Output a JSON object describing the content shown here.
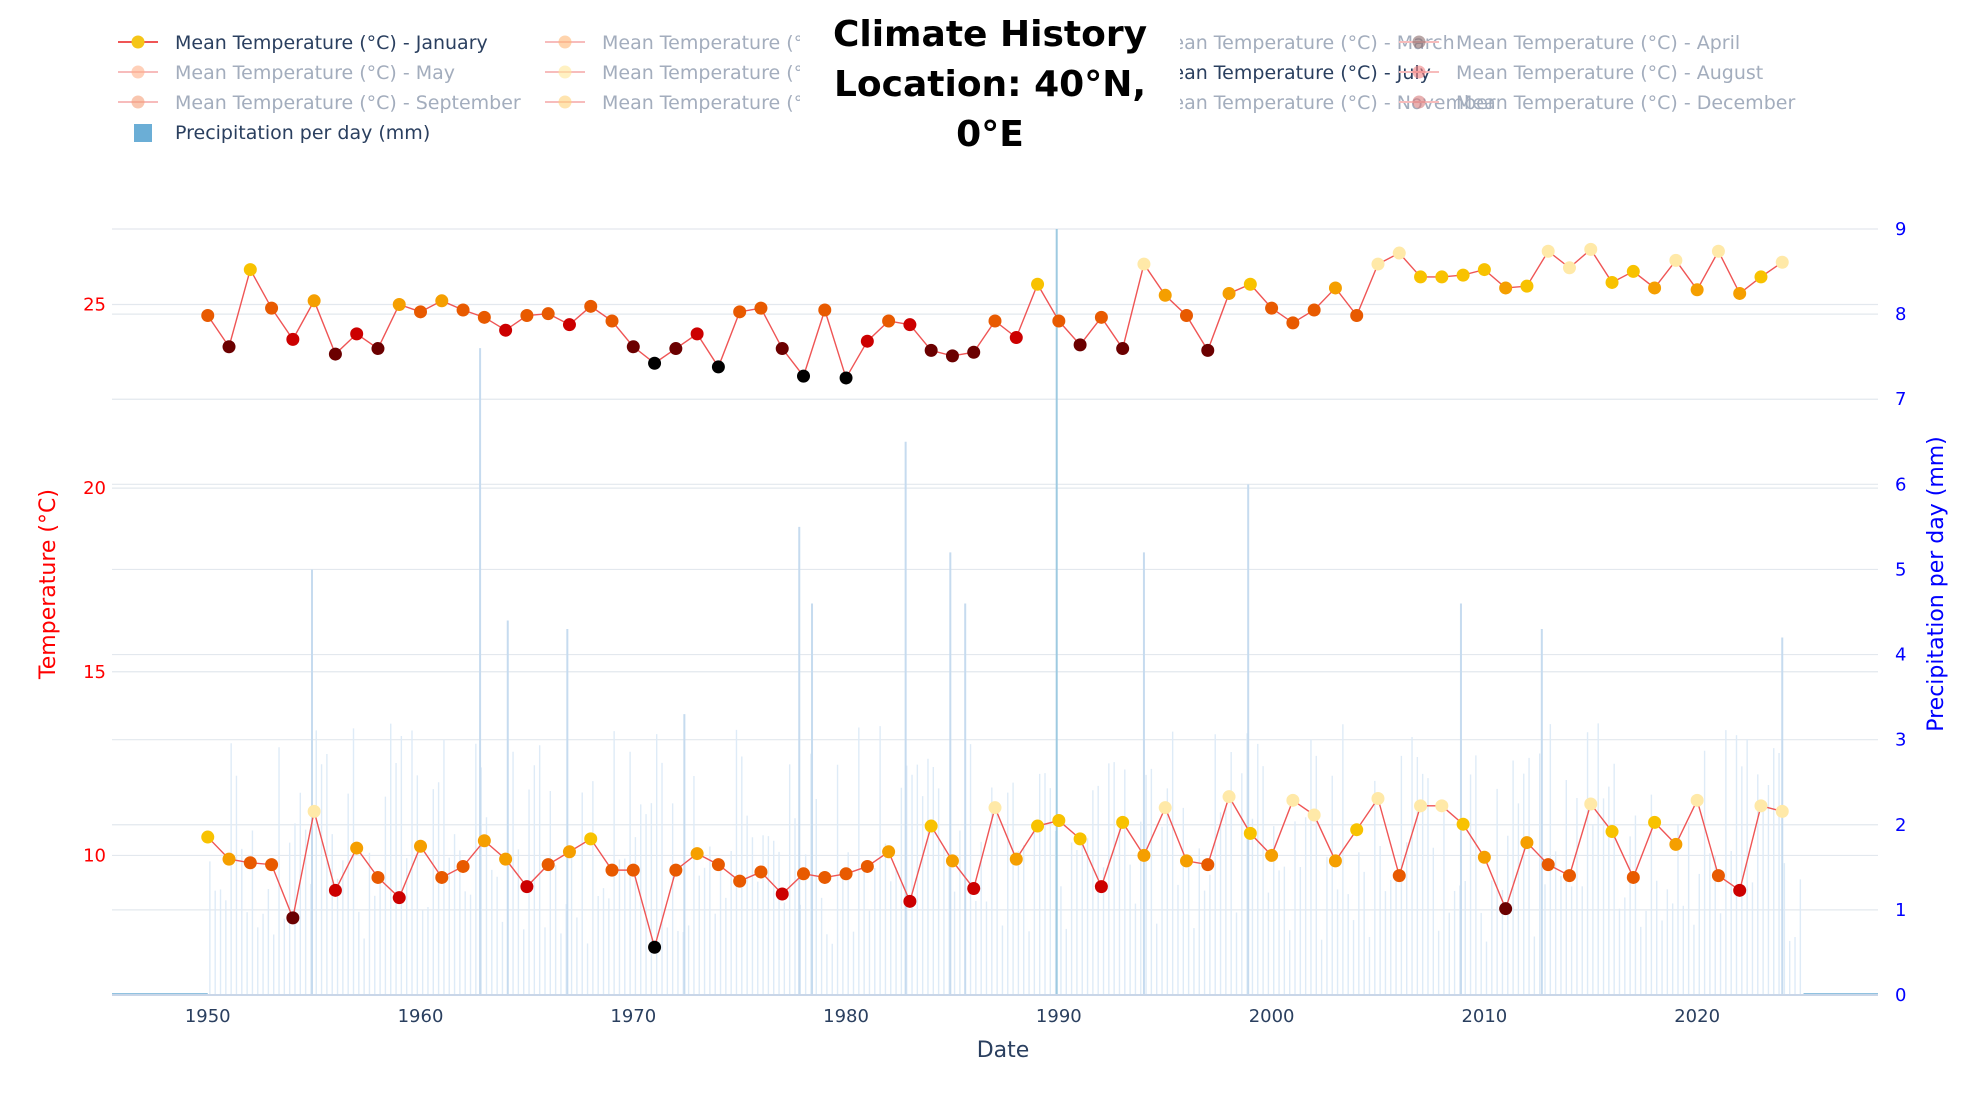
{
  "chart_data": {
    "type": "line",
    "title": "Climate History",
    "subtitle": "Location: 40°N, 0°E",
    "xlabel": "Date",
    "ylabel_left": "Temperature (°C)",
    "ylabel_right": "Precipitation per day (mm)",
    "x_ticks": [
      "1950",
      "1960",
      "1970",
      "1980",
      "1990",
      "2000",
      "2010",
      "2020"
    ],
    "y_left_ticks": [
      "10",
      "15",
      "20",
      "25"
    ],
    "y_right_ticks": [
      "0",
      "1",
      "2",
      "3",
      "4",
      "5",
      "6",
      "7",
      "8",
      "9"
    ],
    "xlim": [
      1945.5,
      2028.5
    ],
    "ylim_left": [
      6.2,
      27.3
    ],
    "ylim_right": [
      0,
      9
    ],
    "grid": true,
    "legend_position": "top",
    "legend": [
      {
        "name": "Mean Temperature (°C) - January",
        "color": "#f5c518",
        "active": true
      },
      {
        "name": "Mean Temperature (°C) - February",
        "color": "#ffb877",
        "active": false
      },
      {
        "name": "Mean Temperature (°C) - March",
        "color": "#f4a6a0",
        "active": false
      },
      {
        "name": "Mean Temperature (°C) - April",
        "color": "#8b6a6a",
        "active": false
      },
      {
        "name": "Mean Temperature (°C) - May",
        "color": "#ffb08a",
        "active": false
      },
      {
        "name": "Mean Temperature (°C) - June",
        "color": "#ffe79a",
        "active": false
      },
      {
        "name": "Mean Temperature (°C) - July",
        "color": "#f5c518",
        "active": true
      },
      {
        "name": "Mean Temperature (°C) - August",
        "color": "#f08080",
        "active": false
      },
      {
        "name": "Mean Temperature (°C) - September",
        "color": "#f5a07a",
        "active": false
      },
      {
        "name": "Mean Temperature (°C) - October",
        "color": "#ffd27a",
        "active": false
      },
      {
        "name": "Mean Temperature (°C) - November",
        "color": "#f4b0a8",
        "active": false
      },
      {
        "name": "Mean Temperature (°C) - December",
        "color": "#d97b7b",
        "active": false
      },
      {
        "name": "Precipitation per day (mm)",
        "color": "#6baed6",
        "active": true,
        "kind": "bar"
      }
    ],
    "series": [
      {
        "name": "Mean Temperature (°C) - January",
        "x": [
          1950,
          1951,
          1952,
          1953,
          1954,
          1955,
          1956,
          1957,
          1958,
          1959,
          1960,
          1961,
          1962,
          1963,
          1964,
          1965,
          1966,
          1967,
          1968,
          1969,
          1970,
          1971,
          1972,
          1973,
          1974,
          1975,
          1976,
          1977,
          1978,
          1979,
          1980,
          1981,
          1982,
          1983,
          1984,
          1985,
          1986,
          1987,
          1988,
          1989,
          1990,
          1991,
          1992,
          1993,
          1994,
          1995,
          1996,
          1997,
          1998,
          1999,
          2000,
          2001,
          2002,
          2003,
          2004,
          2005,
          2006,
          2007,
          2008,
          2009,
          2010,
          2011,
          2012,
          2013,
          2014,
          2015,
          2016,
          2017,
          2018,
          2019,
          2020,
          2021,
          2022,
          2023,
          2024
        ],
        "values": [
          10.5,
          9.9,
          9.8,
          9.75,
          8.3,
          11.2,
          9.05,
          10.2,
          9.4,
          8.85,
          10.25,
          9.4,
          9.7,
          10.4,
          9.9,
          9.15,
          9.75,
          10.1,
          10.45,
          9.6,
          9.6,
          7.5,
          9.6,
          10.05,
          9.75,
          9.3,
          9.55,
          8.95,
          9.5,
          9.4,
          9.5,
          9.7,
          10.1,
          8.75,
          10.8,
          9.85,
          9.1,
          11.3,
          9.9,
          10.8,
          10.95,
          10.45,
          9.15,
          10.9,
          10.0,
          11.3,
          9.85,
          9.75,
          11.6,
          10.6,
          10.0,
          11.5,
          11.1,
          9.85,
          10.7,
          11.55,
          9.45,
          11.35,
          11.35,
          10.85,
          9.95,
          8.55,
          10.35,
          9.75,
          9.45,
          11.4,
          10.65,
          9.4,
          10.9,
          10.3,
          11.5,
          9.45,
          9.05,
          11.35,
          11.2
        ],
        "color": "#ef5555"
      },
      {
        "name": "Mean Temperature (°C) - July",
        "x": [
          1950,
          1951,
          1952,
          1953,
          1954,
          1955,
          1956,
          1957,
          1958,
          1959,
          1960,
          1961,
          1962,
          1963,
          1964,
          1965,
          1966,
          1967,
          1968,
          1969,
          1970,
          1971,
          1972,
          1973,
          1974,
          1975,
          1976,
          1977,
          1978,
          1979,
          1980,
          1981,
          1982,
          1983,
          1984,
          1985,
          1986,
          1987,
          1988,
          1989,
          1990,
          1991,
          1992,
          1993,
          1994,
          1995,
          1996,
          1997,
          1998,
          1999,
          2000,
          2001,
          2002,
          2003,
          2004,
          2005,
          2006,
          2007,
          2008,
          2009,
          2010,
          2011,
          2012,
          2013,
          2014,
          2015,
          2016,
          2017,
          2018,
          2019,
          2020,
          2021,
          2022,
          2023,
          2024
        ],
        "values": [
          24.7,
          23.85,
          25.95,
          24.9,
          24.05,
          25.1,
          23.65,
          24.2,
          23.8,
          25.0,
          24.8,
          25.1,
          24.85,
          24.65,
          24.3,
          24.7,
          24.75,
          24.45,
          24.95,
          24.55,
          23.85,
          23.4,
          23.8,
          24.2,
          23.3,
          24.8,
          24.9,
          23.8,
          23.05,
          24.85,
          23.0,
          24.0,
          24.55,
          24.45,
          23.75,
          23.6,
          23.7,
          24.55,
          24.1,
          25.55,
          24.55,
          23.9,
          24.65,
          23.8,
          26.1,
          25.25,
          24.7,
          23.75,
          25.3,
          25.55,
          24.9,
          24.5,
          24.85,
          25.45,
          24.7,
          26.1,
          26.4,
          25.75,
          25.75,
          25.8,
          25.95,
          25.45,
          25.5,
          26.45,
          26.0,
          26.5,
          25.6,
          25.9,
          25.45,
          26.2,
          25.4,
          26.45,
          25.3,
          25.75,
          26.15
        ],
        "color": "#ef5555"
      },
      {
        "name": "Precipitation per day (mm)",
        "spikes": [
          {
            "x": 1954.9,
            "value": 5.0
          },
          {
            "x": 1962.8,
            "value": 7.6
          },
          {
            "x": 1964.1,
            "value": 4.4
          },
          {
            "x": 1966.9,
            "value": 4.3
          },
          {
            "x": 1972.4,
            "value": 3.3
          },
          {
            "x": 1977.8,
            "value": 5.5
          },
          {
            "x": 1978.4,
            "value": 4.6
          },
          {
            "x": 1982.8,
            "value": 6.5
          },
          {
            "x": 1984.9,
            "value": 5.2
          },
          {
            "x": 1985.6,
            "value": 4.6
          },
          {
            "x": 1989.9,
            "value": 9.0
          },
          {
            "x": 1994.0,
            "value": 5.2
          },
          {
            "x": 1998.9,
            "value": 6.0
          },
          {
            "x": 2008.9,
            "value": 4.6
          },
          {
            "x": 2012.7,
            "value": 4.3
          },
          {
            "x": 2024.0,
            "value": 4.2
          }
        ],
        "baseline": 0.7,
        "color": "#6baed6"
      }
    ]
  }
}
